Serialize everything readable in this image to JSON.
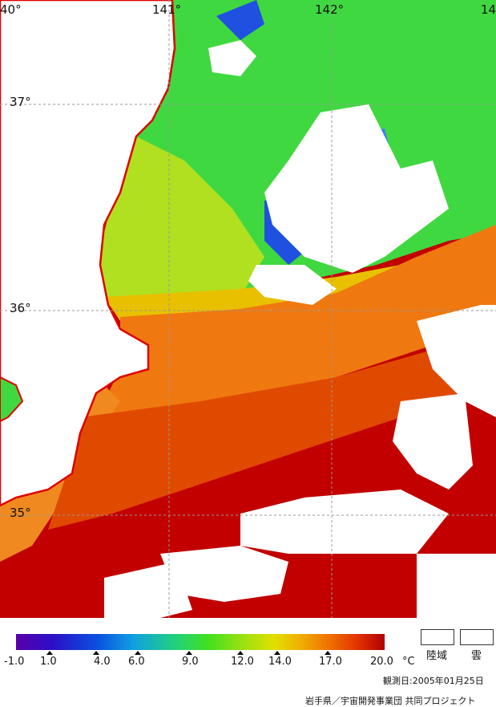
{
  "map": {
    "lon_labels": [
      "40°",
      "141°",
      "142°",
      "14"
    ],
    "lat_labels": [
      "37°",
      "36°",
      "35°"
    ],
    "colors": {
      "land": "#ffffff",
      "cloud": "#ffffff",
      "coast": "#e00000",
      "grid": "#9a9a9a",
      "warm": "#c20000",
      "warm2": "#e24000",
      "mid": "#f08000",
      "cool": "#a8e010",
      "cold": "#30d040",
      "cold2": "#2050e0"
    }
  },
  "colorbar": {
    "tick_labels": [
      "-1.0",
      "1.0",
      "4.0",
      "6.0",
      "9.0",
      "12.0",
      "14.0",
      "17.0",
      "20.0",
      "°C"
    ]
  },
  "legend": {
    "land_label": "陸域",
    "cloud_label": "雲"
  },
  "footer": {
    "date": "観測日:2005年01月25日",
    "credit": "岩手県／宇宙開発事業団 共同プロジェクト"
  }
}
